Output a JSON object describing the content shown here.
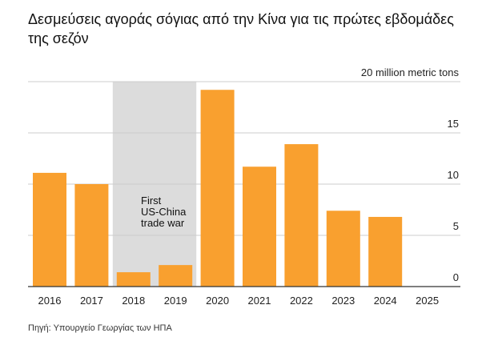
{
  "title": "Δεσμεύσεις αγοράς σόγιας από την Κίνα για τις πρώτες εβδομάδες της σεζόν",
  "source": "Πηγή: Υπουργείο Γεωργίας των ΗΠΑ",
  "colors": {
    "bar": "#f9a02f",
    "shade": "#dcdcdc",
    "grid": "#cccccc",
    "axis": "#333333"
  },
  "chart_data": {
    "type": "bar",
    "title": "Δεσμεύσεις αγοράς σόγιας από την Κίνα για τις πρώτες εβδομάδες της σεζόν",
    "categories": [
      "2016",
      "2017",
      "2018",
      "2019",
      "2020",
      "2021",
      "2022",
      "2023",
      "2024",
      "2025"
    ],
    "values": [
      11.1,
      10.0,
      1.4,
      2.1,
      19.2,
      11.7,
      13.9,
      7.4,
      6.8,
      0
    ],
    "ylim": [
      0,
      20
    ],
    "yticks": [
      0,
      5,
      10,
      15,
      20
    ],
    "ytick_labels": [
      "0",
      "5",
      "10",
      "15",
      "20 million metric tons"
    ],
    "ylabel": "million metric tons",
    "shaded_region": {
      "from": "2018",
      "to": "2019",
      "label_lines": [
        "First",
        "US-China",
        "trade war"
      ]
    },
    "grid": true
  }
}
